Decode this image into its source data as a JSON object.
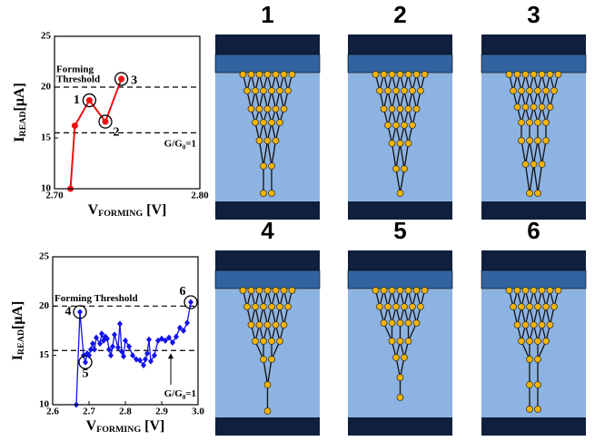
{
  "chart_data": [
    {
      "type": "line",
      "color": "#ee1111",
      "marker": "circle",
      "x": [
        2.711,
        2.714,
        2.724,
        2.735,
        2.746
      ],
      "values": [
        10,
        16.2,
        18.7,
        16.6,
        20.8
      ],
      "point_labels": [
        null,
        null,
        "1",
        "2",
        "3"
      ],
      "xlim": [
        2.7,
        2.8
      ],
      "xticks": [
        {
          "value": 2.7,
          "label": "2.70"
        },
        {
          "value": 2.8,
          "label": "2.80"
        }
      ],
      "ylim": [
        10,
        25
      ],
      "yticks": [
        10,
        15,
        20,
        25
      ],
      "xlabel": {
        "main": "V",
        "sub": "FORMING",
        "unit": " [V]"
      },
      "ylabel": {
        "main": "I",
        "sub": "READ",
        "unit": "[μA]"
      },
      "hlines": [
        {
          "value": 20,
          "label": {
            "lines": [
              "Forming",
              "Threshold"
            ]
          }
        },
        {
          "value": 15.5,
          "label": {
            "main": "G/G",
            "sub": "0",
            "rest": "=1"
          }
        }
      ]
    },
    {
      "type": "line",
      "color": "#1111ee",
      "marker": "diamond",
      "x": [
        2.665,
        2.675,
        2.685,
        2.69,
        2.695,
        2.7,
        2.705,
        2.71,
        2.715,
        2.72,
        2.73,
        2.735,
        2.74,
        2.745,
        2.75,
        2.755,
        2.76,
        2.765,
        2.77,
        2.78,
        2.785,
        2.79,
        2.795,
        2.8,
        2.81,
        2.82,
        2.83,
        2.84,
        2.85,
        2.855,
        2.86,
        2.865,
        2.87,
        2.88,
        2.89,
        2.9,
        2.91,
        2.92,
        2.93,
        2.94,
        2.95,
        2.96,
        2.97,
        2.98
      ],
      "values": [
        10,
        19.4,
        15.0,
        14.3,
        15.2,
        15.0,
        15.6,
        16.2,
        15.6,
        16.8,
        16.2,
        17.2,
        16.5,
        16.9,
        16.7,
        15.6,
        15.0,
        15.9,
        17.1,
        15.8,
        18.2,
        15.4,
        14.9,
        16.5,
        15.9,
        15.0,
        14.6,
        14.5,
        14.0,
        14.6,
        15.2,
        16.6,
        14.4,
        15.0,
        16.5,
        16.7,
        16.5,
        16.8,
        16.3,
        16.9,
        17.8,
        17.5,
        18.3,
        20.4
      ],
      "point_labels": [
        null,
        "4",
        null,
        "5",
        null,
        null,
        null,
        null,
        null,
        null,
        null,
        null,
        null,
        null,
        null,
        null,
        null,
        null,
        null,
        null,
        null,
        null,
        null,
        null,
        null,
        null,
        null,
        null,
        null,
        null,
        null,
        null,
        null,
        null,
        null,
        null,
        null,
        null,
        null,
        null,
        null,
        null,
        null,
        "6"
      ],
      "xlim": [
        2.6,
        3.0
      ],
      "xticks": [
        2.6,
        2.7,
        2.8,
        2.9,
        {
          "value": 3.0,
          "label": "3.0"
        }
      ],
      "ylim": [
        10,
        25
      ],
      "yticks": [
        10,
        15,
        20,
        25
      ],
      "xlabel": {
        "main": "V",
        "sub": "FORMING",
        "unit": " [V]"
      },
      "ylabel": {
        "main": "I",
        "sub": "READ",
        "unit": "[μA]"
      },
      "hlines": [
        {
          "value": 20,
          "label": {
            "lines": [
              "Forming Threshold"
            ]
          }
        },
        {
          "value": 15.5,
          "label": {
            "main": "G/G",
            "sub": "0",
            "rest": "=1"
          }
        }
      ]
    }
  ],
  "panels": {
    "labels": [
      "1",
      "2",
      "3",
      "4",
      "5",
      "6"
    ]
  }
}
